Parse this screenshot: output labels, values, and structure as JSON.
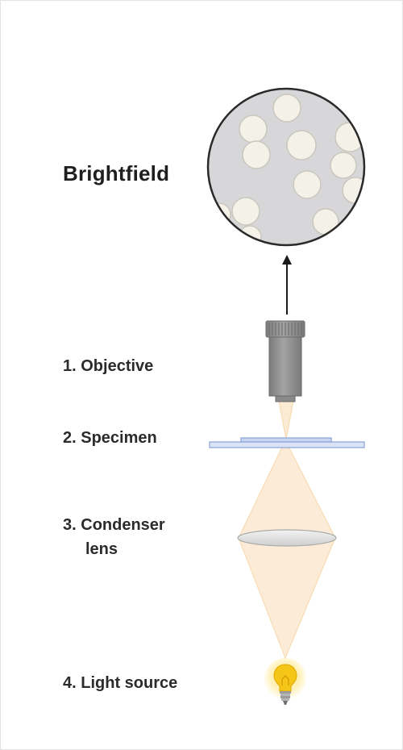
{
  "title": "Brightfield",
  "labels": [
    {
      "number": "1.",
      "text": "Objective"
    },
    {
      "number": "2.",
      "text": "Specimen"
    },
    {
      "number": "3.",
      "text": "Condenser",
      "text_line2": "lens"
    },
    {
      "number": "4.",
      "text": "Light source"
    }
  ],
  "colors": {
    "field_of_view_fill": "#d7d7d9",
    "field_of_view_border": "#2a2a2a",
    "cell_fill": "#f3f1e8",
    "cell_border": "#c9c7bd",
    "objective_body": "#8f8f8f",
    "light_beam": "#fbe8cf",
    "light_beam_edge": "#f7d9a9",
    "slide": "#c9d6f2",
    "slide_edge": "#8aa2d8",
    "condenser": "#e4e4e4",
    "bulb": "#f5c518",
    "arrow": "#1a1a1a"
  }
}
